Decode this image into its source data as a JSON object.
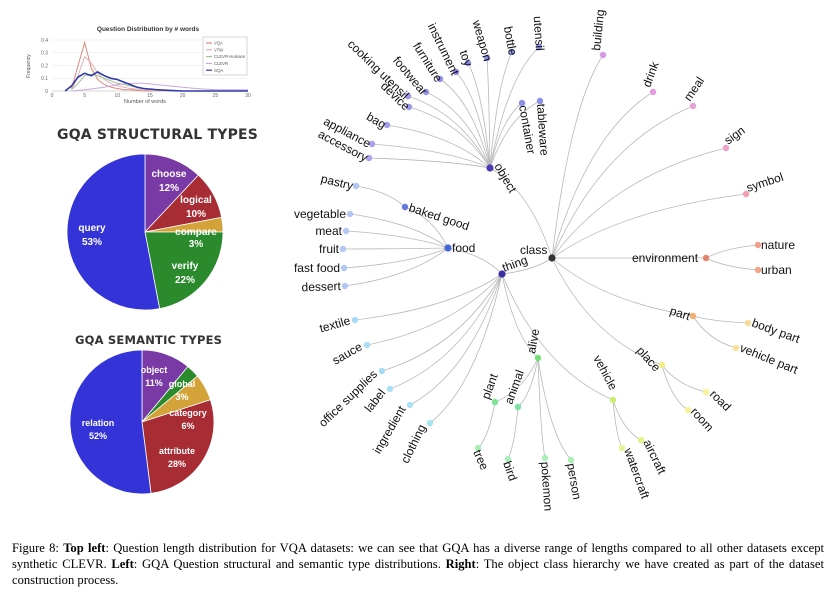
{
  "line_chart": {
    "title": "Question Distribution by # words",
    "xlabel": "Number of words",
    "ylabel": "Frequency",
    "x_ticks": [
      "0",
      "5",
      "10",
      "15",
      "20",
      "25",
      "30"
    ],
    "y_ticks": [
      "0",
      "0.1",
      "0.2",
      "0.3",
      "0.4"
    ],
    "legend": [
      "VQA",
      "V7W",
      "CLEVR-Humans",
      "CLEVR",
      "GQA"
    ],
    "colors": [
      "#d98a7a",
      "#e0b2b0",
      "#9dbf96",
      "#c9a8df",
      "#2f3aa6"
    ]
  },
  "chart_data": [
    {
      "type": "line",
      "title": "Question Distribution by # words",
      "xlabel": "Number of words",
      "ylabel": "Frequency",
      "xlim": [
        0,
        30
      ],
      "ylim": [
        0,
        0.4
      ],
      "series": [
        {
          "name": "VQA",
          "x": [
            3,
            4,
            5,
            6,
            7,
            8,
            9,
            10,
            11,
            12,
            14,
            16,
            20,
            30
          ],
          "y": [
            0.02,
            0.2,
            0.38,
            0.18,
            0.09,
            0.05,
            0.03,
            0.02,
            0.01,
            0.01,
            0,
            0,
            0,
            0
          ]
        },
        {
          "name": "V7W",
          "x": [
            3,
            4,
            5,
            6,
            7,
            8,
            9,
            10,
            12,
            14,
            16,
            20,
            30
          ],
          "y": [
            0.01,
            0.12,
            0.27,
            0.22,
            0.14,
            0.09,
            0.06,
            0.04,
            0.02,
            0.01,
            0,
            0,
            0
          ]
        },
        {
          "name": "CLEVR-Humans",
          "x": [
            3,
            4,
            5,
            6,
            7,
            8,
            9,
            10,
            12,
            14,
            16,
            20,
            30
          ],
          "y": [
            0.01,
            0.06,
            0.12,
            0.13,
            0.12,
            0.1,
            0.08,
            0.06,
            0.04,
            0.02,
            0.01,
            0,
            0
          ]
        },
        {
          "name": "CLEVR",
          "x": [
            3,
            5,
            8,
            10,
            12,
            14,
            16,
            18,
            20,
            22,
            25,
            28,
            30
          ],
          "y": [
            0,
            0.01,
            0.03,
            0.05,
            0.06,
            0.06,
            0.05,
            0.04,
            0.03,
            0.02,
            0.01,
            0.01,
            0.01
          ]
        },
        {
          "name": "GQA",
          "x": [
            2,
            3,
            4,
            5,
            6,
            7,
            8,
            9,
            10,
            11,
            12,
            13,
            14,
            16,
            18,
            20,
            25,
            30
          ],
          "y": [
            0,
            0.04,
            0.11,
            0.14,
            0.12,
            0.15,
            0.12,
            0.1,
            0.09,
            0.07,
            0.05,
            0.03,
            0.02,
            0.01,
            0.005,
            0,
            0,
            0
          ]
        }
      ]
    },
    {
      "type": "pie",
      "title": "GQA STRUCTURAL TYPES",
      "slices": [
        {
          "label": "choose",
          "value": 12,
          "display": "12%",
          "color": "#7a3aa6"
        },
        {
          "label": "logical",
          "value": 10,
          "display": "10%",
          "color": "#a82c34"
        },
        {
          "label": "compare",
          "value": 3,
          "display": "3%",
          "color": "#d3a33a"
        },
        {
          "label": "verify",
          "value": 22,
          "display": "22%",
          "color": "#2a8a2c"
        },
        {
          "label": "query",
          "value": 53,
          "display": "53%",
          "color": "#3333d8"
        }
      ]
    },
    {
      "type": "pie",
      "title": "GQA SEMANTIC TYPES",
      "slices": [
        {
          "label": "object",
          "value": 11,
          "display": "11%",
          "color": "#7a3aa6"
        },
        {
          "label": "global",
          "value": 3,
          "display": "3%",
          "color": "#2a8a2c"
        },
        {
          "label": "category",
          "value": 6,
          "display": "6%",
          "color": "#d3a33a"
        },
        {
          "label": "attribute",
          "value": 28,
          "display": "28%",
          "color": "#a82c34"
        },
        {
          "label": "relation",
          "value": 52,
          "display": "52%",
          "color": "#3333d8"
        }
      ]
    }
  ],
  "tree": {
    "root": "class",
    "nodes": [
      {
        "id": "class",
        "label": "class",
        "color": "#333333"
      },
      {
        "id": "object",
        "label": "object",
        "color": "#4a3ab5"
      },
      {
        "id": "thing",
        "label": "thing",
        "color": "#3a2fa6"
      },
      {
        "id": "food",
        "label": "food",
        "color": "#4466dd"
      },
      {
        "id": "baked",
        "label": "baked good",
        "color": "#6677dd"
      },
      {
        "id": "environment",
        "label": "environment",
        "color": "#e98070"
      },
      {
        "id": "part",
        "label": "part",
        "color": "#f2b070"
      },
      {
        "id": "place",
        "label": "place",
        "color": "#f4ee88"
      },
      {
        "id": "vehicle",
        "label": "vehicle",
        "color": "#c8f070"
      },
      {
        "id": "alive",
        "label": "alive",
        "color": "#72e07a"
      },
      {
        "id": "plant",
        "label": "plant",
        "color": "#78e694"
      },
      {
        "id": "animal",
        "label": "animal",
        "color": "#7ae2a2"
      },
      {
        "id": "accessory",
        "label": "accessory",
        "color": "#a8a2ea"
      },
      {
        "id": "appliance",
        "label": "appliance",
        "color": "#a4a0ea"
      },
      {
        "id": "bag",
        "label": "bag",
        "color": "#a09cea"
      },
      {
        "id": "device",
        "label": "device",
        "color": "#9c98ea"
      },
      {
        "id": "cooking",
        "label": "cooking utensil",
        "color": "#9a98ea"
      },
      {
        "id": "footwear",
        "label": "footwear",
        "color": "#9896ea"
      },
      {
        "id": "furniture",
        "label": "furniture",
        "color": "#9494ea"
      },
      {
        "id": "instrument",
        "label": "instrument",
        "color": "#9292ea"
      },
      {
        "id": "toy",
        "label": "toy",
        "color": "#9090ea"
      },
      {
        "id": "weapon",
        "label": "weapon",
        "color": "#8e90ea"
      },
      {
        "id": "bottle",
        "label": "bottle",
        "color": "#8c90ea"
      },
      {
        "id": "utensil",
        "label": "utensil",
        "color": "#8c92ea"
      },
      {
        "id": "container",
        "label": "container",
        "color": "#8a8ee6"
      },
      {
        "id": "tableware",
        "label": "tableware",
        "color": "#8a90e6"
      },
      {
        "id": "building",
        "label": "building",
        "color": "#d89ae6"
      },
      {
        "id": "drink",
        "label": "drink",
        "color": "#e39ae0"
      },
      {
        "id": "meal",
        "label": "meal",
        "color": "#e8a0d8"
      },
      {
        "id": "sign",
        "label": "sign",
        "color": "#f0a0c6"
      },
      {
        "id": "symbol",
        "label": "symbol",
        "color": "#f0a0b0"
      },
      {
        "id": "nature",
        "label": "nature",
        "color": "#f2a08a"
      },
      {
        "id": "urban",
        "label": "urban",
        "color": "#f2a48a"
      },
      {
        "id": "bodypart",
        "label": "body part",
        "color": "#f8dc9a"
      },
      {
        "id": "vehiclepart",
        "label": "vehicle part",
        "color": "#f8e09a"
      },
      {
        "id": "road",
        "label": "road",
        "color": "#f8f29a"
      },
      {
        "id": "room",
        "label": "room",
        "color": "#f8f29a"
      },
      {
        "id": "aircraft",
        "label": "aircraft",
        "color": "#e0f48a"
      },
      {
        "id": "watercraft",
        "label": "watercraft",
        "color": "#e4f49a"
      },
      {
        "id": "person",
        "label": "person",
        "color": "#a8f0b2"
      },
      {
        "id": "pokemon",
        "label": "pokemon",
        "color": "#a8f0b6"
      },
      {
        "id": "bird",
        "label": "bird",
        "color": "#a8f0ba"
      },
      {
        "id": "tree",
        "label": "tree",
        "color": "#a8f0b2"
      },
      {
        "id": "clothing",
        "label": "clothing",
        "color": "#a8e4f2"
      },
      {
        "id": "ingredient",
        "label": "ingredient",
        "color": "#a8e2f4"
      },
      {
        "id": "label",
        "label": "label",
        "color": "#a8e0f4"
      },
      {
        "id": "office",
        "label": "office supplies",
        "color": "#a8dcf4"
      },
      {
        "id": "sauce",
        "label": "sauce",
        "color": "#a8dcf4"
      },
      {
        "id": "textile",
        "label": "textile",
        "color": "#a8dcf4"
      },
      {
        "id": "dessert",
        "label": "dessert",
        "color": "#b4c6f2"
      },
      {
        "id": "fastfood",
        "label": "fast food",
        "color": "#b4c6f2"
      },
      {
        "id": "fruit",
        "label": "fruit",
        "color": "#b4c6f2"
      },
      {
        "id": "meat",
        "label": "meat",
        "color": "#b4c6f2"
      },
      {
        "id": "vegetable",
        "label": "vegetable",
        "color": "#b4c6f2"
      },
      {
        "id": "pastry",
        "label": "pastry",
        "color": "#b4c6f2"
      }
    ]
  },
  "caption": {
    "fig": "Figure 8:",
    "b1": "Top left",
    "t1": ": Question length distribution for VQA datasets: we can see that GQA has a diverse range of lengths compared to all other datasets except synthetic CLEVR.",
    "b2": "Left",
    "t2": ": GQA Question structural and semantic type distributions.",
    "b3": "Right",
    "t3": ": The object class hierarchy we have created as part of the dataset construction process."
  }
}
